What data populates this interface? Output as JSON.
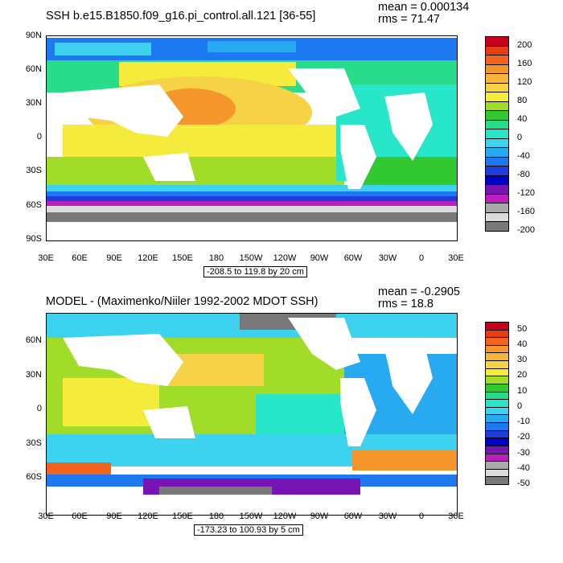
{
  "top": {
    "title": "SSH b.e15.B1850.f09_g16.pi_control.all.121 [36-55]",
    "mean": "mean = 0.000134",
    "rms": "rms = 71.47",
    "y_labels": [
      "90N",
      "60N",
      "30N",
      "0",
      "30S",
      "60S",
      "90S"
    ],
    "x_labels": [
      "30E",
      "60E",
      "90E",
      "120E",
      "150E",
      "180",
      "150W",
      "120W",
      "90W",
      "60W",
      "30W",
      "0",
      "30E"
    ],
    "range_text": "-208.5 to 119.8 by 20 cm",
    "colorbar_labels": [
      "200",
      "160",
      "120",
      "80",
      "40",
      "0",
      "-40",
      "-80",
      "-120",
      "-160",
      "-200"
    ],
    "colorbar_colors": [
      "#c8001e",
      "#e83c14",
      "#f2641e",
      "#f5962d",
      "#f5b43c",
      "#f5d246",
      "#f5eb3c",
      "#a0dc28",
      "#32c832",
      "#28dc8c",
      "#28e6c8",
      "#3cd2f0",
      "#28aaf0",
      "#1e78f0",
      "#1e3cdc",
      "#0000c8",
      "#7814b4",
      "#be1ebe",
      "#aaaaaa",
      "#dcdcdc",
      "#787878"
    ]
  },
  "bottom": {
    "title": "MODEL - (Maximenko/Niiler 1992-2002 MDOT SSH)",
    "mean": "mean = -0.2905",
    "rms": "rms = 18.8",
    "y_labels": [
      "60N",
      "30N",
      "0",
      "30S",
      "60S"
    ],
    "x_labels": [
      "30E",
      "60E",
      "90E",
      "120E",
      "150E",
      "180",
      "150W",
      "120W",
      "90W",
      "60W",
      "30W",
      "0",
      "30E"
    ],
    "range_text": "-173.23 to 100.93 by 5 cm",
    "colorbar_labels": [
      "50",
      "40",
      "30",
      "20",
      "10",
      "0",
      "-10",
      "-20",
      "-30",
      "-40",
      "-50"
    ],
    "colorbar_colors": [
      "#c8001e",
      "#e83c14",
      "#f2641e",
      "#f5962d",
      "#f5b43c",
      "#f5d246",
      "#f5eb3c",
      "#a0dc28",
      "#32c832",
      "#28dc8c",
      "#28e6c8",
      "#3cd2f0",
      "#28aaf0",
      "#1e78f0",
      "#1e3cdc",
      "#0000c8",
      "#7814b4",
      "#be1ebe",
      "#aaaaaa",
      "#dcdcdc",
      "#787878"
    ]
  }
}
